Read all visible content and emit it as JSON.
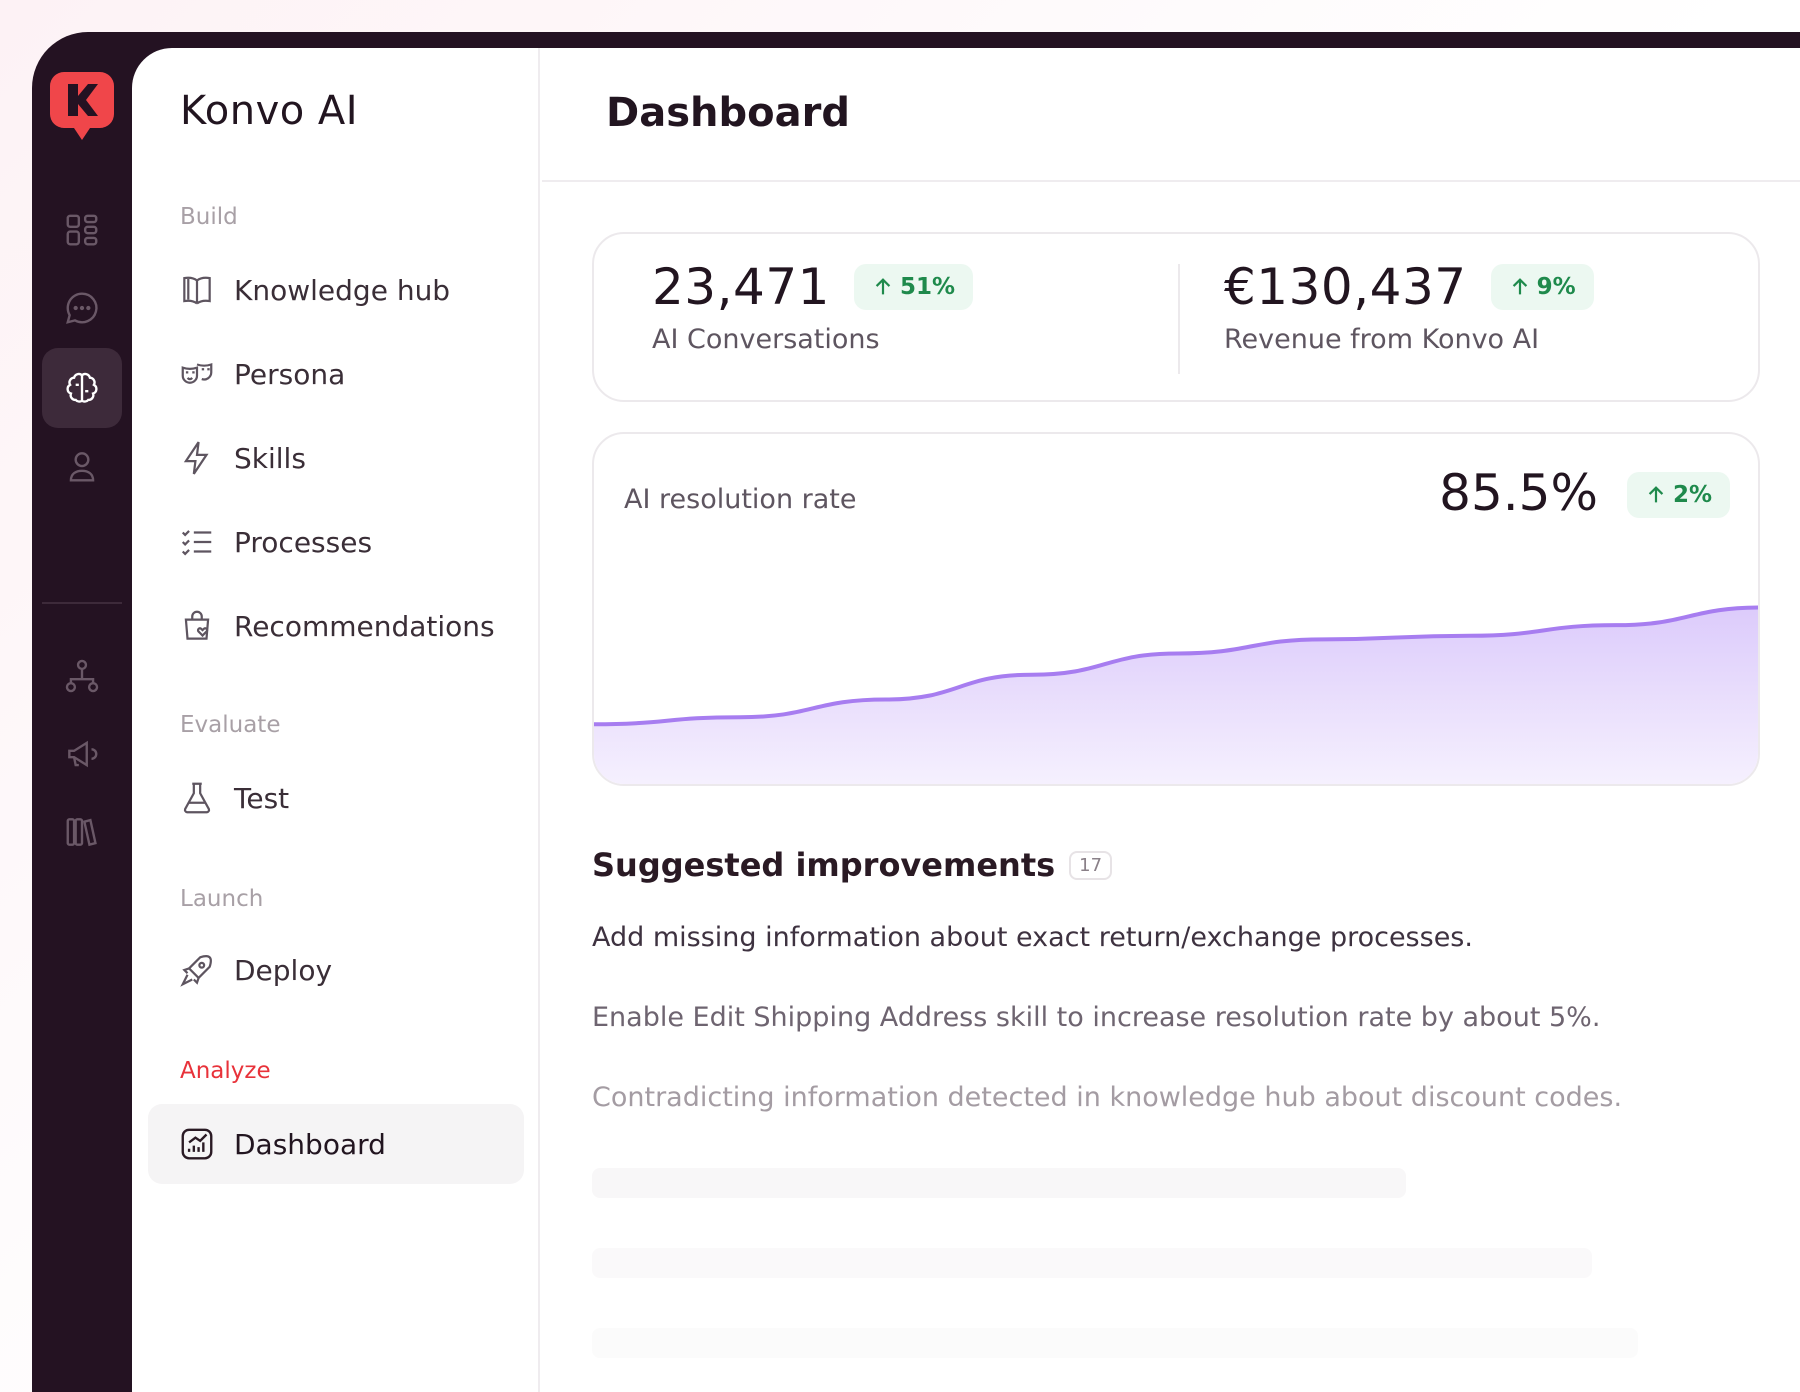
{
  "colors": {
    "accent": "#e8323a",
    "rail_bg": "#241222",
    "positive": "#1f8a4c",
    "chart_line": "#a77df0"
  },
  "rail": {
    "items": [
      {
        "icon": "dashboard-grid-icon"
      },
      {
        "icon": "chat-bubble-icon"
      },
      {
        "icon": "brain-icon",
        "active": true
      },
      {
        "icon": "user-icon"
      },
      {
        "icon": "hierarchy-icon"
      },
      {
        "icon": "megaphone-icon"
      },
      {
        "icon": "library-icon"
      }
    ]
  },
  "sidebar": {
    "brand": "Konvo AI",
    "sections": {
      "build": "Build",
      "evaluate": "Evaluate",
      "launch": "Launch",
      "analyze": "Analyze"
    },
    "items": {
      "knowledge_hub": "Knowledge hub",
      "persona": "Persona",
      "skills": "Skills",
      "processes": "Processes",
      "recommendations": "Recommendations",
      "test": "Test",
      "deploy": "Deploy",
      "dashboard": "Dashboard"
    }
  },
  "header": {
    "title": "Dashboard"
  },
  "stats": {
    "conversations": {
      "value": "23,471",
      "change": "51%",
      "label": "AI Conversations"
    },
    "revenue": {
      "value": "€130,437",
      "change": "9%",
      "label": "Revenue from Konvo AI"
    }
  },
  "chart": {
    "label": "AI resolution rate",
    "value": "85.5%",
    "change": "2%"
  },
  "chart_data": {
    "type": "area",
    "title": "AI resolution rate",
    "xlabel": "",
    "ylabel": "",
    "grid": false,
    "ylim": [
      0,
      100
    ],
    "x": [
      0,
      1,
      2,
      3,
      4,
      5,
      6,
      7,
      8
    ],
    "series": [
      {
        "values": [
          18,
          20,
          25,
          32,
          38,
          42,
          43,
          46,
          51
        ]
      }
    ]
  },
  "suggestions": {
    "title": "Suggested improvements",
    "count": "17",
    "items": [
      "Add missing information about exact return/exchange processes.",
      "Enable Edit Shipping Address skill to increase resolution rate by about 5%.",
      "Contradicting information detected in knowledge hub about discount codes."
    ]
  }
}
